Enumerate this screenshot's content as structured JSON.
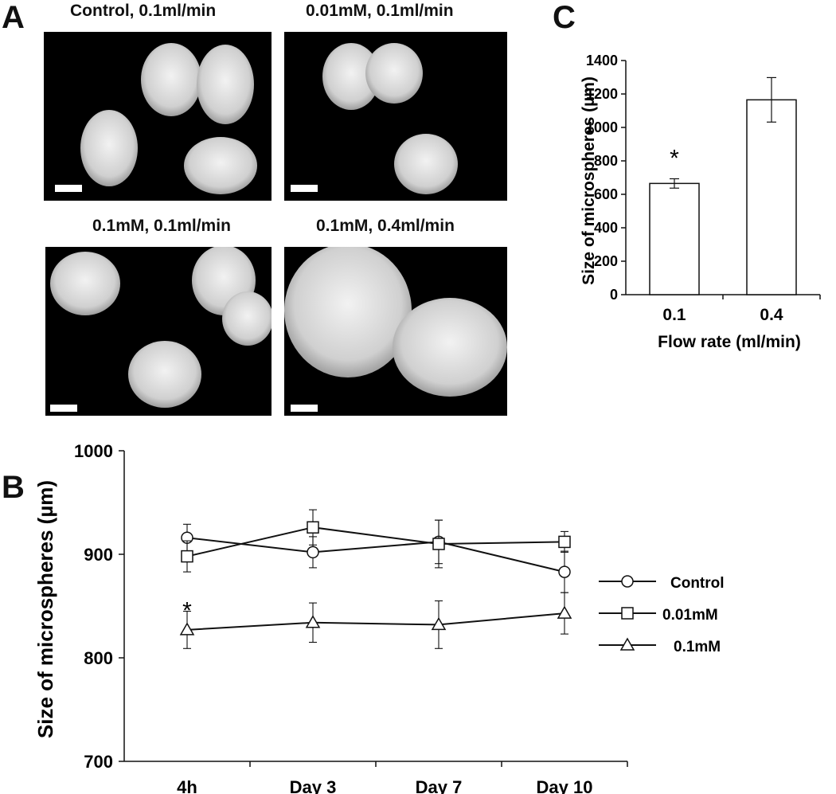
{
  "panel_labels": {
    "a": "A",
    "b": "B",
    "c": "C"
  },
  "images": [
    {
      "caption": "Control, 0.1ml/min"
    },
    {
      "caption": "0.01mM, 0.1ml/min"
    },
    {
      "caption": "0.1mM, 0.1ml/min"
    },
    {
      "caption": "0.1mM, 0.4ml/min"
    }
  ],
  "colors": {
    "line": "#111111",
    "bar_fill": "#ffffff",
    "image_bg": "#000000",
    "sphere": "#e6e6e6"
  },
  "chart_data": [
    {
      "panel": "B",
      "type": "line",
      "title": "",
      "xlabel": "",
      "ylabel": "Size of microspheres (µm)",
      "categories": [
        "4h",
        "Day 3",
        "Day 7",
        "Day 10"
      ],
      "ylim": [
        700,
        1000
      ],
      "yticks": [
        "700",
        "800",
        "900",
        "1000"
      ],
      "legend_position": "right",
      "series": [
        {
          "name": "Control",
          "marker": "circle",
          "values": [
            916,
            902,
            912,
            883
          ],
          "errors": [
            13,
            15,
            21,
            20
          ]
        },
        {
          "name": "0.01mM",
          "marker": "square",
          "values": [
            898,
            926,
            910,
            912
          ],
          "errors": [
            15,
            17,
            23,
            10
          ]
        },
        {
          "name": "0.1mM",
          "marker": "triangle",
          "values": [
            827,
            834,
            832,
            843
          ],
          "errors": [
            18,
            19,
            23,
            20
          ]
        }
      ],
      "annotations": [
        {
          "text": "*",
          "category": "4h",
          "value": 855
        }
      ]
    },
    {
      "panel": "C",
      "type": "bar",
      "title": "",
      "xlabel": "Flow rate (ml/min)",
      "ylabel": "Size of microspheres (µm)",
      "categories": [
        "0.1",
        "0.4"
      ],
      "values": [
        665,
        1165
      ],
      "errors": [
        28,
        133
      ],
      "ylim": [
        0,
        1400
      ],
      "yticks": [
        "0",
        "200",
        "400",
        "600",
        "800",
        "1000",
        "1200",
        "1400"
      ],
      "annotations": [
        {
          "text": "*",
          "category": "0.1",
          "value": 835
        }
      ]
    }
  ]
}
